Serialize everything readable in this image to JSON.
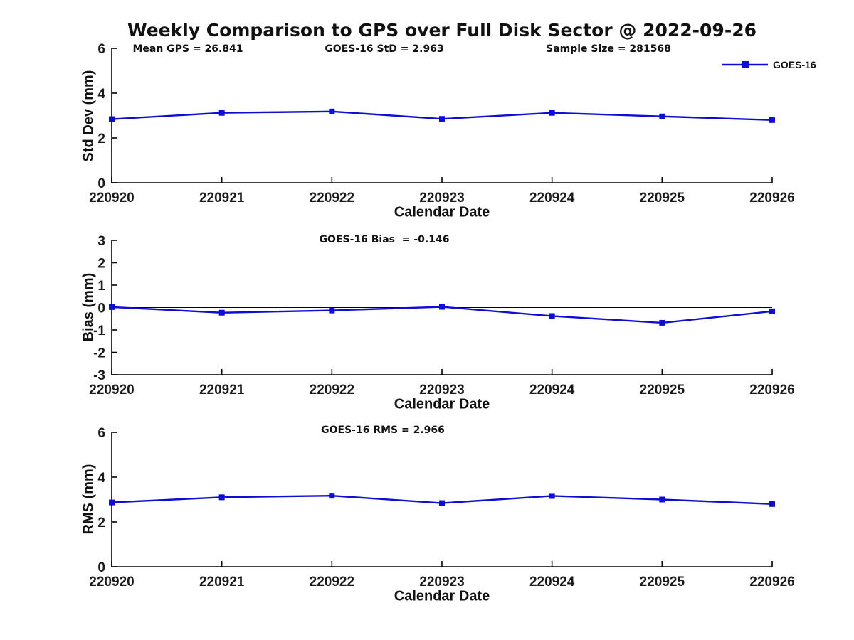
{
  "title": "Weekly Comparison to GPS over Full Disk Sector @ 2022-09-26",
  "colors": {
    "line": "#0d0dd4",
    "marker": "#0d0dd4",
    "axis": "#000000",
    "text": "#1a1a1a",
    "background": "#ffffff"
  },
  "chart_data": [
    {
      "type": "line",
      "name": "std-dev-panel",
      "title": "",
      "ylabel": "Std Dev (mm)",
      "xlabel": "Calendar Date",
      "categories": [
        "220920",
        "220921",
        "220922",
        "220923",
        "220924",
        "220925",
        "220926"
      ],
      "series": [
        {
          "name": "GOES-16",
          "values": [
            2.84,
            3.12,
            3.18,
            2.85,
            3.12,
            2.96,
            2.8
          ]
        }
      ],
      "ylim": [
        0,
        6
      ],
      "yticks": [
        0,
        2,
        4,
        6
      ],
      "grid": false,
      "zero_line": false,
      "legend": [
        "GOES-16"
      ],
      "legend_position": "top-right",
      "annotations": [
        "Mean GPS = 26.841",
        "GOES-16 StD = 2.963",
        "Sample Size = 281568"
      ]
    },
    {
      "type": "line",
      "name": "bias-panel",
      "title": "",
      "ylabel": "Bias (mm)",
      "xlabel": "Calendar Date",
      "categories": [
        "220920",
        "220921",
        "220922",
        "220923",
        "220924",
        "220925",
        "220926"
      ],
      "series": [
        {
          "name": "GOES-16",
          "values": [
            0.02,
            -0.23,
            -0.13,
            0.03,
            -0.38,
            -0.68,
            -0.17
          ]
        }
      ],
      "ylim": [
        -3,
        3
      ],
      "yticks": [
        -3,
        -2,
        -1,
        0,
        1,
        2,
        3
      ],
      "grid": false,
      "zero_line": true,
      "annotations": [
        "GOES-16 Bias  = -0.146"
      ]
    },
    {
      "type": "line",
      "name": "rms-panel",
      "title": "",
      "ylabel": "RMS (mm)",
      "xlabel": "Calendar Date",
      "categories": [
        "220920",
        "220921",
        "220922",
        "220923",
        "220924",
        "220925",
        "220926"
      ],
      "series": [
        {
          "name": "GOES-16",
          "values": [
            2.87,
            3.1,
            3.17,
            2.84,
            3.16,
            3.0,
            2.8
          ]
        }
      ],
      "ylim": [
        0,
        6
      ],
      "yticks": [
        0,
        2,
        4,
        6
      ],
      "grid": false,
      "zero_line": false,
      "annotations": [
        "GOES-16 RMS = 2.966"
      ]
    }
  ]
}
